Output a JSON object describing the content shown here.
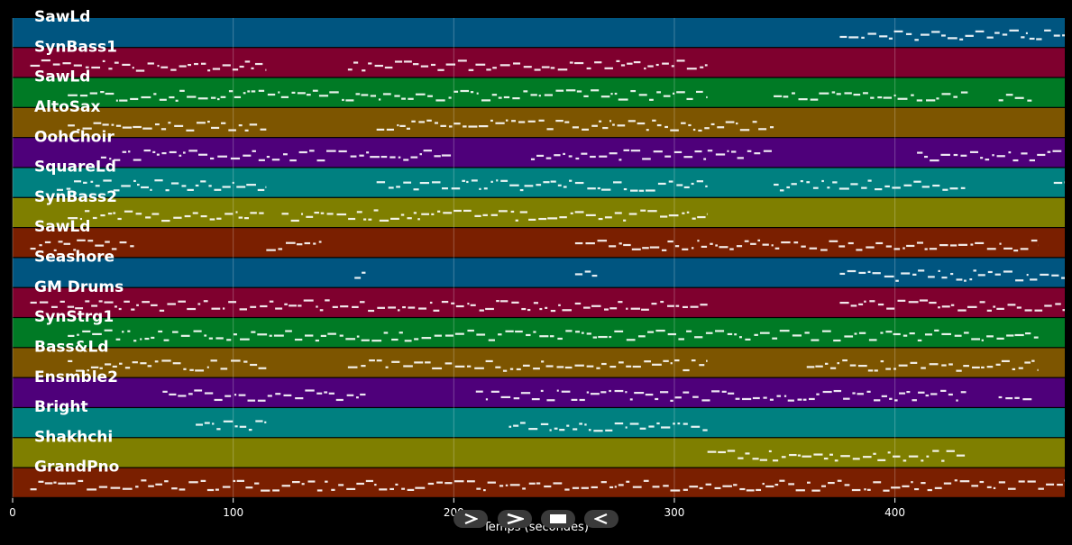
{
  "chart_data": {
    "type": "piano-roll",
    "title": "",
    "xlabel": "Temps (secondes)",
    "ylabel": "",
    "xlim": [
      0,
      477
    ],
    "xticks": [
      0,
      100,
      200,
      300,
      400
    ],
    "grid": true,
    "tracks": [
      {
        "name": "SawLd",
        "color": "#005580",
        "segments": [
          [
            375,
            480
          ]
        ]
      },
      {
        "name": "SynBass1",
        "color": "#7f002e",
        "segments": [
          [
            8,
            115
          ],
          [
            152,
            315
          ]
        ]
      },
      {
        "name": "SawLd",
        "color": "#007a25",
        "segments": [
          [
            25,
            315
          ],
          [
            345,
            433
          ],
          [
            447,
            462
          ]
        ]
      },
      {
        "name": "AltoSax",
        "color": "#7d5500",
        "segments": [
          [
            25,
            115
          ],
          [
            165,
            345
          ]
        ]
      },
      {
        "name": "OohChoir",
        "color": "#4e007a",
        "segments": [
          [
            40,
            200
          ],
          [
            235,
            345
          ],
          [
            410,
            477
          ]
        ]
      },
      {
        "name": "SquareLd",
        "color": "#008080",
        "segments": [
          [
            20,
            115
          ],
          [
            165,
            315
          ],
          [
            345,
            433
          ],
          [
            472,
            477
          ]
        ]
      },
      {
        "name": "SynBass2",
        "color": "#7f7f00",
        "segments": [
          [
            25,
            115
          ],
          [
            122,
            315
          ]
        ]
      },
      {
        "name": "SawLd",
        "color": "#7a1f00",
        "segments": [
          [
            8,
            55
          ],
          [
            115,
            140
          ],
          [
            255,
            465
          ]
        ]
      },
      {
        "name": "Seashore",
        "color": "#005580",
        "segments": [
          [
            155,
            160
          ],
          [
            255,
            265
          ],
          [
            375,
            477
          ]
        ]
      },
      {
        "name": "GM Drums",
        "color": "#7f002e",
        "segments": [
          [
            8,
            315
          ],
          [
            375,
            477
          ]
        ]
      },
      {
        "name": "SynStrg1",
        "color": "#007a25",
        "segments": [
          [
            25,
            465
          ]
        ]
      },
      {
        "name": "Bass&Ld",
        "color": "#7d5500",
        "segments": [
          [
            25,
            115
          ],
          [
            152,
            315
          ],
          [
            360,
            465
          ]
        ]
      },
      {
        "name": "Ensmble2",
        "color": "#4e007a",
        "segments": [
          [
            68,
            160
          ],
          [
            210,
            433
          ],
          [
            447,
            462
          ]
        ]
      },
      {
        "name": "Bright",
        "color": "#008080",
        "segments": [
          [
            83,
            115
          ],
          [
            225,
            315
          ]
        ]
      },
      {
        "name": "Shakhchi",
        "color": "#7f7f00",
        "segments": [
          [
            315,
            433
          ]
        ]
      },
      {
        "name": "GrandPno",
        "color": "#7a1f00",
        "segments": [
          [
            8,
            477
          ]
        ]
      }
    ]
  },
  "controls": {
    "play_forward": "play-forward-icon",
    "fast_forward": "fast-forward-icon",
    "stop": "stop-icon",
    "play_backward": "play-backward-icon"
  }
}
